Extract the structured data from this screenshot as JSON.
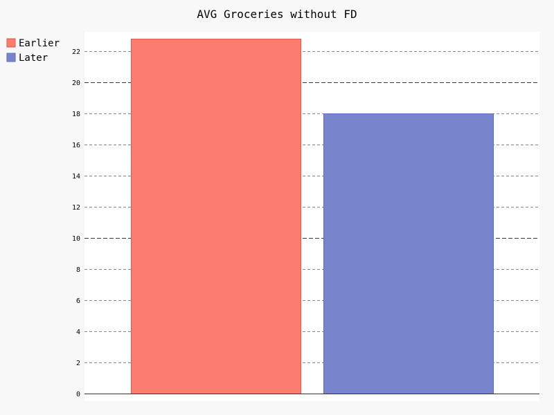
{
  "chart_data": {
    "type": "bar",
    "title": "AVG Groceries without FD",
    "xlabel": "",
    "ylabel": "",
    "categories": [
      "Earlier",
      "Later"
    ],
    "series": [
      {
        "name": "Earlier",
        "value": 22.8,
        "color": "#f97c6f",
        "stroke": "#e8574c"
      },
      {
        "name": "Later",
        "value": 18.0,
        "color": "#7884cc",
        "stroke": "#5c6bc0"
      }
    ],
    "ylim": [
      0,
      23.2
    ],
    "yticks": [
      0,
      2,
      4,
      6,
      8,
      10,
      12,
      14,
      16,
      18,
      20,
      22
    ],
    "major_gridlines": [
      10,
      20
    ],
    "grid": true,
    "legend_position": "top-left",
    "plot_background": "#ffffff",
    "page_background": "#f8f8f8"
  }
}
